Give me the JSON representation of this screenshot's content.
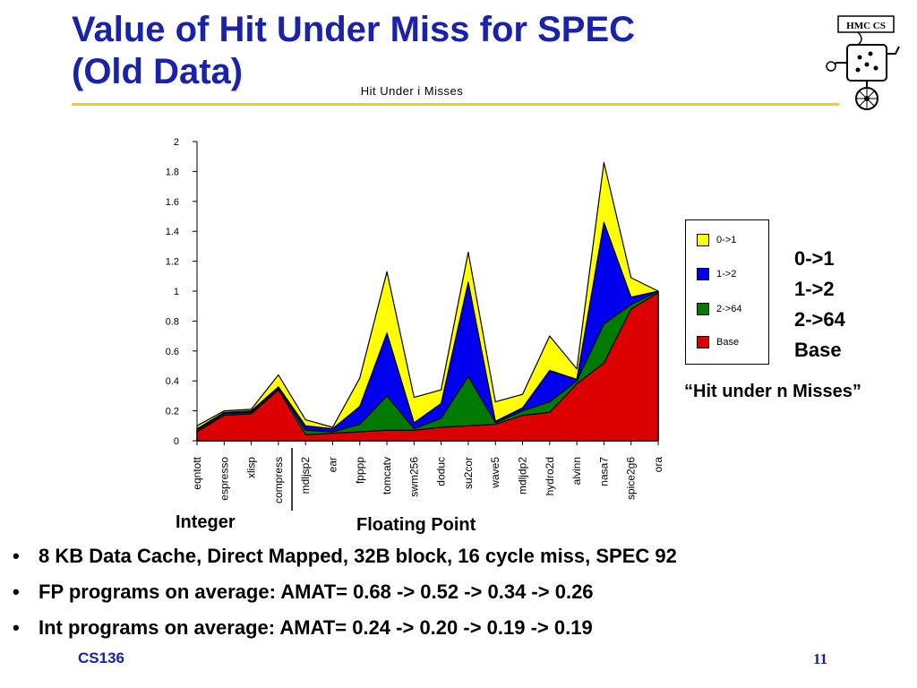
{
  "slide": {
    "title_line1": "Value of Hit Under Miss for SPEC",
    "title_line2": "(Old Data)",
    "caption": "“Hit under n Misses”",
    "side_key": [
      "0->1",
      "1->2",
      "2->64",
      "Base"
    ],
    "group_labels": {
      "integer": "Integer",
      "floating_point": "Floating Point"
    },
    "bullets": [
      "8 KB Data Cache, Direct Mapped, 32B block, 16 cycle miss, SPEC 92",
      "FP programs on average: AMAT= 0.68 -> 0.52 -> 0.34 -> 0.26",
      "Int programs on average: AMAT= 0.24 -> 0.20 -> 0.19 -> 0.19"
    ],
    "bullet_marker": "•",
    "footer_left": "CS136",
    "page_number": "11",
    "logo_text": "HMC CS"
  },
  "chart_data": {
    "type": "area",
    "title": "Hit Under i Misses",
    "categories": [
      "eqntott",
      "espresso",
      "xlisp",
      "compress",
      "mdljsp2",
      "ear",
      "fpppp",
      "tomcatv",
      "swm256",
      "doduc",
      "su2cor",
      "wave5",
      "mdljdp2",
      "hydro2d",
      "alvinn",
      "nasa7",
      "spice2g6",
      "ora"
    ],
    "ylim": [
      0,
      2
    ],
    "yticks": [
      "0",
      "0.2",
      "0.4",
      "0.6",
      "0.8",
      "1",
      "1.2",
      "1.4",
      "1.6",
      "1.8",
      "2"
    ],
    "ytick_values": [
      0,
      0.2,
      0.4,
      0.6,
      0.8,
      1,
      1.2,
      1.4,
      1.6,
      1.8,
      2
    ],
    "stacked_boundaries": true,
    "series": [
      {
        "name": "0->1",
        "color": "#ffff00",
        "values": [
          0.1,
          0.2,
          0.21,
          0.44,
          0.14,
          0.09,
          0.42,
          1.13,
          0.29,
          0.34,
          1.26,
          0.26,
          0.31,
          0.7,
          0.48,
          1.86,
          1.09,
          1.0
        ]
      },
      {
        "name": "1->2",
        "color": "#0000ee",
        "values": [
          0.08,
          0.19,
          0.2,
          0.36,
          0.1,
          0.08,
          0.23,
          0.72,
          0.12,
          0.25,
          1.06,
          0.13,
          0.22,
          0.47,
          0.41,
          1.46,
          0.96,
          1.0
        ]
      },
      {
        "name": "2->64",
        "color": "#007a00",
        "values": [
          0.07,
          0.18,
          0.19,
          0.35,
          0.07,
          0.06,
          0.11,
          0.3,
          0.08,
          0.15,
          0.43,
          0.12,
          0.2,
          0.26,
          0.4,
          0.78,
          0.91,
          1.0
        ]
      },
      {
        "name": "Base",
        "color": "#dd0000",
        "values": [
          0.06,
          0.17,
          0.18,
          0.34,
          0.04,
          0.05,
          0.06,
          0.07,
          0.07,
          0.09,
          0.1,
          0.11,
          0.17,
          0.19,
          0.38,
          0.52,
          0.88,
          0.99
        ]
      }
    ],
    "group_divider_after": "compress",
    "legend_position": "right"
  }
}
